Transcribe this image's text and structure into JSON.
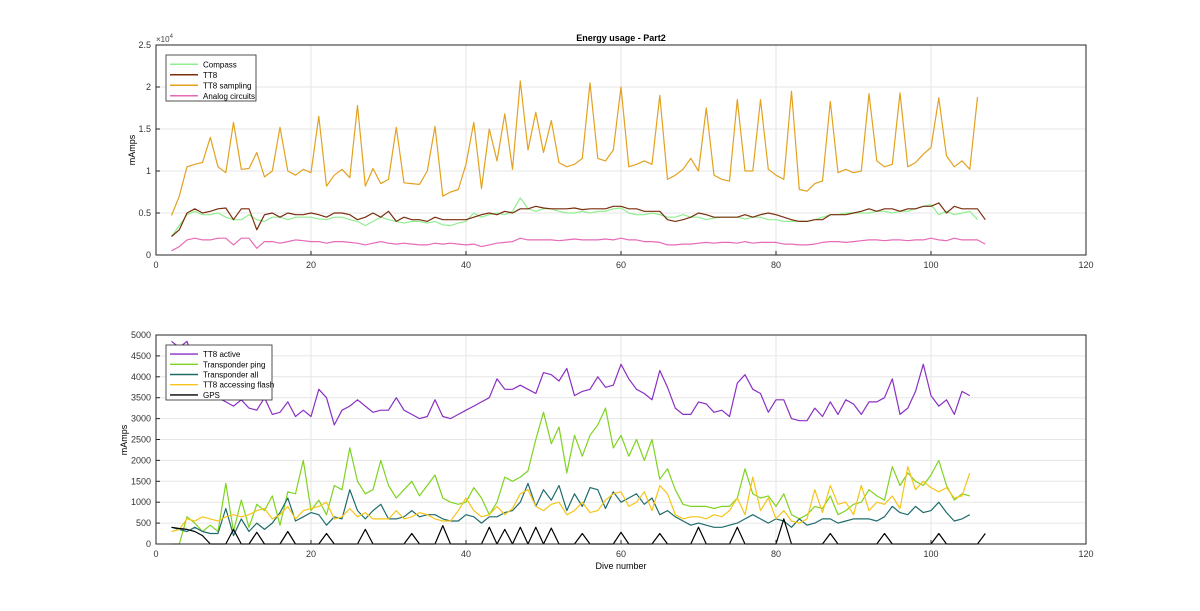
{
  "chart_data": [
    {
      "type": "line",
      "title": "Energy usage - Part2",
      "xlabel": "",
      "ylabel": "mAmps",
      "exponent_label": "×10",
      "exponent_power": "4",
      "xlim": [
        0,
        120
      ],
      "ylim": [
        0,
        2.5
      ],
      "xticks": [
        0,
        20,
        40,
        60,
        80,
        100,
        120
      ],
      "yticks": [
        0,
        0.5,
        1,
        1.5,
        2,
        2.5
      ],
      "ytick_labels": [
        "0",
        "0.5",
        "1",
        "1.5",
        "2",
        "2.5"
      ],
      "grid": true,
      "legend_position": "top-left",
      "x_start": 2,
      "series": [
        {
          "name": "Compass",
          "color": "#90ee90",
          "values": [
            0.22,
            0.35,
            0.48,
            0.52,
            0.48,
            0.48,
            0.5,
            0.45,
            0.42,
            0.42,
            0.48,
            0.42,
            0.4,
            0.45,
            0.45,
            0.42,
            0.45,
            0.45,
            0.45,
            0.43,
            0.42,
            0.45,
            0.45,
            0.42,
            0.4,
            0.35,
            0.4,
            0.45,
            0.42,
            0.4,
            0.38,
            0.4,
            0.4,
            0.38,
            0.4,
            0.36,
            0.35,
            0.38,
            0.4,
            0.5,
            0.45,
            0.48,
            0.5,
            0.48,
            0.52,
            0.68,
            0.55,
            0.52,
            0.55,
            0.55,
            0.52,
            0.5,
            0.5,
            0.52,
            0.5,
            0.52,
            0.52,
            0.55,
            0.56,
            0.5,
            0.48,
            0.48,
            0.5,
            0.48,
            0.45,
            0.45,
            0.48,
            0.45,
            0.45,
            0.42,
            0.44,
            0.45,
            0.45,
            0.45,
            0.43,
            0.45,
            0.45,
            0.42,
            0.42,
            0.4,
            0.4,
            0.4,
            0.4,
            0.42,
            0.45,
            0.48,
            0.48,
            0.5,
            0.5,
            0.5,
            0.5,
            0.52,
            0.52,
            0.5,
            0.52,
            0.52,
            0.55,
            0.58,
            0.6,
            0.48,
            0.52,
            0.48,
            0.5,
            0.52,
            0.42
          ]
        },
        {
          "name": "TT8",
          "color": "#7a2e0e",
          "values": [
            0.22,
            0.3,
            0.5,
            0.55,
            0.5,
            0.52,
            0.55,
            0.56,
            0.42,
            0.55,
            0.55,
            0.3,
            0.48,
            0.5,
            0.45,
            0.5,
            0.48,
            0.48,
            0.5,
            0.48,
            0.45,
            0.5,
            0.5,
            0.48,
            0.42,
            0.45,
            0.5,
            0.45,
            0.52,
            0.4,
            0.45,
            0.42,
            0.42,
            0.4,
            0.45,
            0.42,
            0.42,
            0.42,
            0.42,
            0.45,
            0.48,
            0.5,
            0.48,
            0.52,
            0.5,
            0.55,
            0.55,
            0.58,
            0.56,
            0.55,
            0.55,
            0.55,
            0.56,
            0.54,
            0.55,
            0.55,
            0.55,
            0.58,
            0.58,
            0.55,
            0.55,
            0.52,
            0.52,
            0.52,
            0.42,
            0.4,
            0.42,
            0.45,
            0.5,
            0.48,
            0.45,
            0.45,
            0.45,
            0.45,
            0.48,
            0.45,
            0.48,
            0.5,
            0.48,
            0.45,
            0.42,
            0.4,
            0.4,
            0.42,
            0.42,
            0.48,
            0.48,
            0.48,
            0.5,
            0.52,
            0.55,
            0.52,
            0.55,
            0.55,
            0.52,
            0.55,
            0.55,
            0.58,
            0.58,
            0.62,
            0.5,
            0.58,
            0.55,
            0.55,
            0.55,
            0.42
          ]
        },
        {
          "name": "TT8 sampling",
          "color": "#e3a11f",
          "values": [
            0.47,
            0.7,
            1.05,
            1.08,
            1.1,
            1.4,
            1.05,
            0.98,
            1.58,
            1.02,
            1.03,
            1.22,
            0.93,
            1.0,
            1.52,
            1.0,
            0.95,
            1.02,
            0.98,
            1.65,
            0.82,
            0.95,
            1.02,
            0.92,
            1.78,
            0.82,
            1.03,
            0.85,
            0.9,
            1.52,
            0.86,
            0.85,
            0.84,
            1.0,
            1.53,
            0.7,
            0.75,
            0.78,
            1.08,
            1.58,
            0.79,
            1.5,
            1.12,
            1.68,
            1.02,
            2.07,
            1.25,
            1.7,
            1.22,
            1.6,
            1.1,
            1.05,
            1.08,
            1.15,
            2.05,
            1.15,
            1.12,
            1.25,
            2.0,
            1.05,
            1.08,
            1.12,
            1.08,
            1.9,
            0.9,
            0.95,
            1.02,
            1.15,
            1.0,
            1.75,
            0.95,
            0.9,
            0.88,
            1.85,
            1.0,
            1.0,
            1.85,
            1.02,
            0.95,
            0.9,
            1.95,
            0.78,
            0.76,
            0.85,
            0.88,
            1.83,
            0.98,
            1.02,
            0.98,
            1.0,
            1.92,
            1.12,
            1.05,
            1.08,
            1.93,
            1.05,
            1.1,
            1.2,
            1.28,
            1.87,
            1.18,
            1.05,
            1.12,
            1.02,
            1.88
          ]
        },
        {
          "name": "Analog circuits",
          "color": "#e66ab7",
          "values": [
            0.05,
            0.1,
            0.18,
            0.2,
            0.18,
            0.18,
            0.2,
            0.2,
            0.12,
            0.2,
            0.2,
            0.08,
            0.16,
            0.16,
            0.14,
            0.16,
            0.18,
            0.17,
            0.16,
            0.16,
            0.14,
            0.16,
            0.16,
            0.15,
            0.14,
            0.12,
            0.14,
            0.16,
            0.14,
            0.13,
            0.14,
            0.13,
            0.12,
            0.12,
            0.14,
            0.13,
            0.14,
            0.13,
            0.12,
            0.13,
            0.1,
            0.12,
            0.14,
            0.15,
            0.16,
            0.2,
            0.18,
            0.18,
            0.18,
            0.18,
            0.17,
            0.18,
            0.19,
            0.18,
            0.18,
            0.18,
            0.19,
            0.18,
            0.2,
            0.18,
            0.18,
            0.16,
            0.16,
            0.15,
            0.12,
            0.12,
            0.13,
            0.13,
            0.14,
            0.15,
            0.14,
            0.15,
            0.15,
            0.14,
            0.16,
            0.14,
            0.15,
            0.15,
            0.15,
            0.13,
            0.13,
            0.12,
            0.12,
            0.13,
            0.15,
            0.16,
            0.16,
            0.15,
            0.16,
            0.17,
            0.18,
            0.18,
            0.17,
            0.18,
            0.18,
            0.17,
            0.18,
            0.18,
            0.2,
            0.18,
            0.17,
            0.2,
            0.18,
            0.18,
            0.18,
            0.13
          ]
        }
      ]
    },
    {
      "type": "line",
      "title": "",
      "xlabel": "Dive number",
      "ylabel": "mAmps",
      "xlim": [
        0,
        120
      ],
      "ylim": [
        0,
        5000
      ],
      "xticks": [
        0,
        20,
        40,
        60,
        80,
        100,
        120
      ],
      "yticks": [
        0,
        500,
        1000,
        1500,
        2000,
        2500,
        3000,
        3500,
        4000,
        4500,
        5000
      ],
      "ytick_labels": [
        "0",
        "500",
        "1000",
        "1500",
        "2000",
        "2500",
        "3000",
        "3500",
        "4000",
        "4500",
        "5000"
      ],
      "grid": true,
      "legend_position": "top-left",
      "x_start": 2,
      "series": [
        {
          "name": "TT8 active",
          "color": "#8a2fc4",
          "values": [
            4850,
            4700,
            4850,
            4300,
            4000,
            3700,
            3500,
            3400,
            3300,
            3450,
            3250,
            3200,
            3500,
            3100,
            3150,
            3400,
            3050,
            3200,
            3050,
            3700,
            3500,
            2850,
            3200,
            3300,
            3450,
            3300,
            3150,
            3200,
            3200,
            3500,
            3200,
            3100,
            3000,
            3050,
            3450,
            3050,
            3000,
            3100,
            3200,
            3300,
            3400,
            3500,
            3950,
            3700,
            3700,
            3800,
            3700,
            3600,
            4100,
            4050,
            3900,
            4200,
            3550,
            3650,
            3700,
            4000,
            3750,
            3800,
            4300,
            3950,
            3700,
            3600,
            3450,
            4150,
            3750,
            3250,
            3100,
            3100,
            3400,
            3350,
            3150,
            3200,
            3050,
            3850,
            4050,
            3700,
            3600,
            3150,
            3450,
            3450,
            3000,
            2950,
            2950,
            3250,
            3050,
            3400,
            3100,
            3450,
            3350,
            3100,
            3400,
            3400,
            3500,
            3950,
            3100,
            3250,
            3650,
            4300,
            3550,
            3300,
            3450,
            3100,
            3650,
            3550
          ]
        },
        {
          "name": "Transponder ping",
          "color": "#7ed321",
          "values": [
            0,
            0,
            650,
            500,
            300,
            450,
            300,
            1450,
            300,
            1050,
            400,
            950,
            800,
            1150,
            450,
            1250,
            1200,
            2000,
            800,
            1050,
            700,
            1400,
            1300,
            2300,
            1500,
            1200,
            1300,
            2000,
            1400,
            1100,
            1300,
            1500,
            1150,
            1400,
            1650,
            1100,
            1000,
            950,
            1000,
            1350,
            1100,
            700,
            1000,
            1600,
            1500,
            1600,
            1750,
            2500,
            3150,
            2400,
            2800,
            1700,
            2600,
            2100,
            2600,
            2850,
            3250,
            2300,
            2600,
            2100,
            2500,
            2000,
            2500,
            1550,
            1800,
            1300,
            950,
            900,
            900,
            900,
            850,
            900,
            900,
            1100,
            1800,
            1200,
            1100,
            1150,
            900,
            1200,
            700,
            600,
            700,
            900,
            850,
            1150,
            700,
            800,
            950,
            1000,
            1300,
            1150,
            1050,
            1850,
            1400,
            1700,
            1500,
            1400,
            1650,
            2000,
            1400,
            1050,
            1200,
            1150
          ]
        },
        {
          "name": "Transponder all",
          "color": "#1f6b6b",
          "values": [
            400,
            350,
            300,
            400,
            300,
            250,
            250,
            850,
            200,
            600,
            300,
            500,
            350,
            500,
            750,
            1100,
            550,
            650,
            750,
            700,
            450,
            650,
            600,
            1300,
            800,
            600,
            800,
            950,
            600,
            600,
            650,
            800,
            650,
            700,
            700,
            600,
            550,
            550,
            700,
            650,
            500,
            650,
            650,
            750,
            800,
            1000,
            1450,
            900,
            1300,
            1050,
            1400,
            800,
            1200,
            900,
            1350,
            1300,
            850,
            1250,
            1000,
            1100,
            1200,
            950,
            1100,
            700,
            800,
            650,
            550,
            450,
            500,
            450,
            400,
            400,
            450,
            500,
            600,
            700,
            600,
            500,
            600,
            550,
            400,
            600,
            450,
            500,
            600,
            600,
            500,
            550,
            600,
            600,
            600,
            550,
            650,
            900,
            750,
            700,
            900,
            750,
            800,
            1000,
            750,
            550,
            600,
            700
          ]
        },
        {
          "name": "TT8 accessing flash",
          "color": "#f5c518",
          "values": [
            300,
            350,
            600,
            550,
            650,
            600,
            550,
            650,
            700,
            650,
            700,
            800,
            850,
            600,
            700,
            900,
            600,
            800,
            850,
            900,
            1000,
            600,
            650,
            850,
            650,
            750,
            600,
            600,
            600,
            800,
            600,
            650,
            750,
            700,
            600,
            550,
            550,
            800,
            1100,
            800,
            650,
            700,
            900,
            700,
            850,
            1200,
            1300,
            900,
            800,
            950,
            1000,
            700,
            800,
            1000,
            750,
            800,
            1050,
            1200,
            1250,
            900,
            1000,
            1250,
            800,
            1400,
            1200,
            700,
            600,
            650,
            650,
            600,
            700,
            650,
            800,
            1100,
            700,
            1600,
            800,
            1100,
            600,
            800,
            550,
            500,
            600,
            1300,
            750,
            1400,
            950,
            1000,
            700,
            1400,
            800,
            1000,
            950,
            1150,
            850,
            1850,
            1300,
            1500,
            1350,
            1250,
            1350,
            1100,
            1150,
            1700
          ]
        },
        {
          "name": "GPS",
          "color": "#000000",
          "values": [
            400,
            370,
            350,
            300,
            200,
            0,
            0,
            0,
            350,
            0,
            0,
            280,
            0,
            0,
            0,
            300,
            0,
            0,
            0,
            0,
            250,
            0,
            0,
            0,
            0,
            350,
            0,
            0,
            0,
            0,
            0,
            250,
            0,
            0,
            0,
            440,
            0,
            0,
            0,
            0,
            0,
            400,
            0,
            350,
            0,
            400,
            0,
            400,
            0,
            380,
            0,
            0,
            0,
            250,
            0,
            0,
            0,
            0,
            280,
            0,
            0,
            0,
            0,
            250,
            0,
            0,
            0,
            0,
            400,
            0,
            0,
            0,
            0,
            400,
            0,
            0,
            0,
            0,
            0,
            600,
            0,
            0,
            0,
            0,
            0,
            250,
            0,
            0,
            0,
            0,
            0,
            0,
            250,
            0,
            0,
            0,
            0,
            0,
            0,
            250,
            0,
            0,
            0,
            0,
            0,
            250
          ]
        }
      ]
    }
  ]
}
